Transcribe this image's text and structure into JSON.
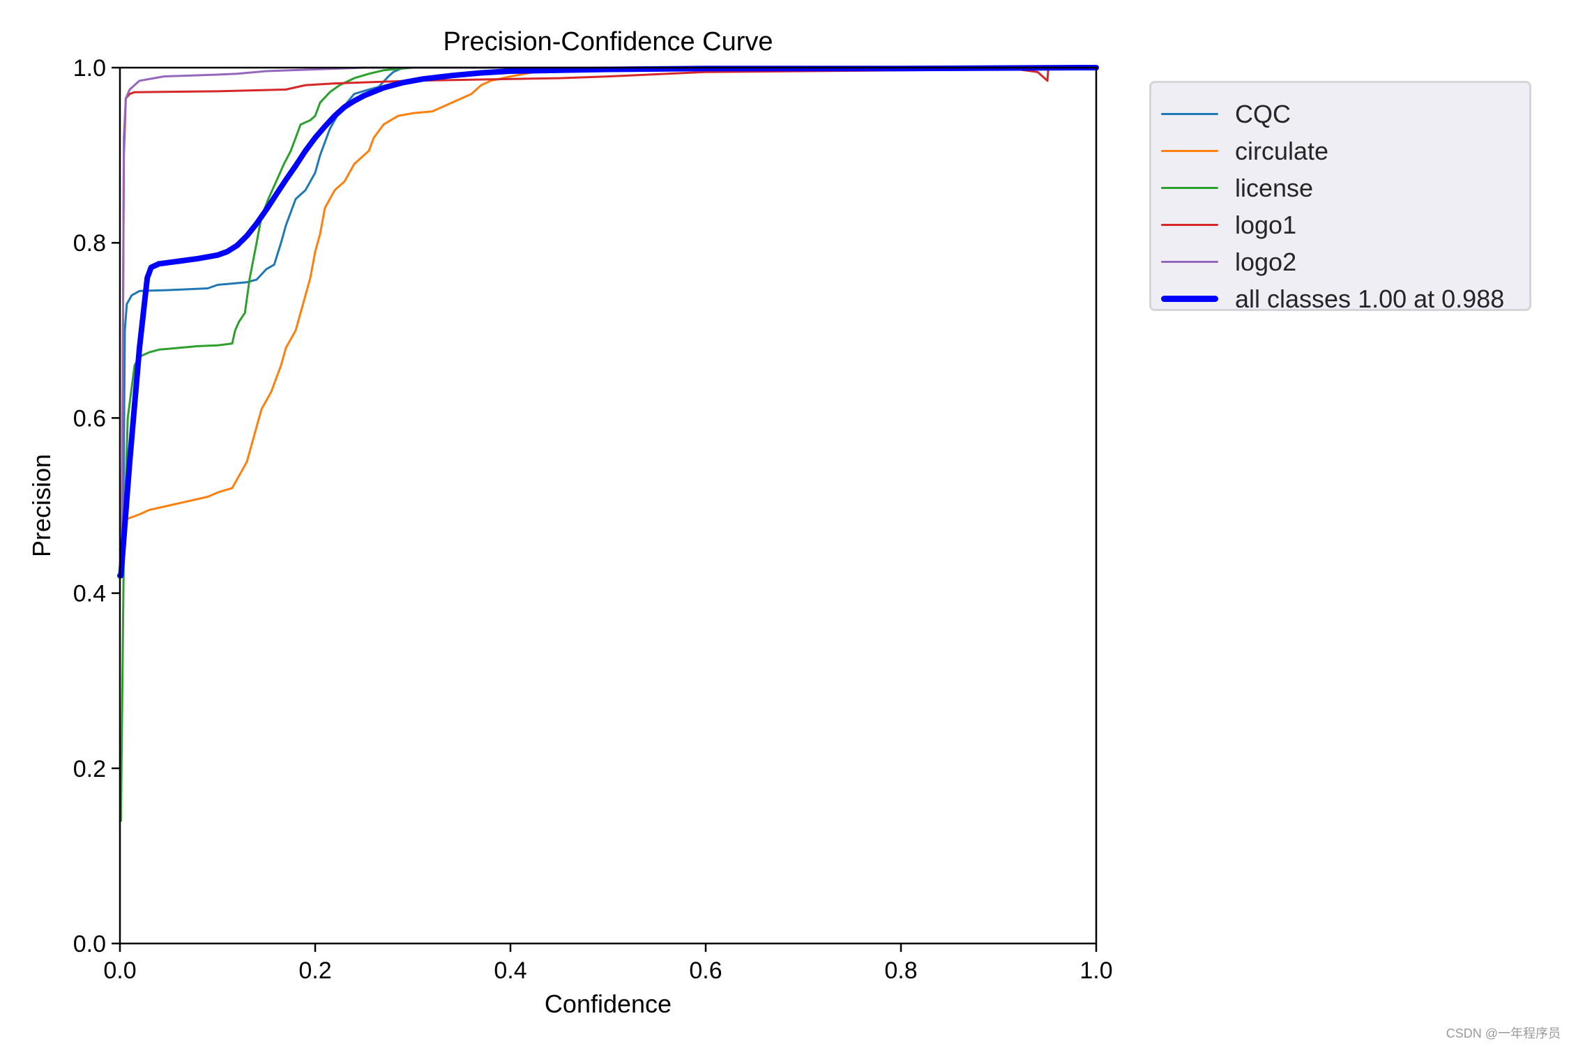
{
  "chart_data": {
    "type": "line",
    "title": "Precision-Confidence Curve",
    "xlabel": "Confidence",
    "ylabel": "Precision",
    "xlim": [
      0.0,
      1.0
    ],
    "ylim": [
      0.0,
      1.0
    ],
    "xticks": [
      "0.0",
      "0.2",
      "0.4",
      "0.6",
      "0.8",
      "1.0"
    ],
    "yticks": [
      "0.0",
      "0.2",
      "0.4",
      "0.6",
      "0.8",
      "1.0"
    ],
    "grid": false,
    "legend_position": "outside upper right",
    "series": [
      {
        "name": "CQC",
        "color": "#1f77b4",
        "width": 3,
        "x": [
          0.003,
          0.005,
          0.007,
          0.012,
          0.02,
          0.05,
          0.09,
          0.1,
          0.13,
          0.14,
          0.15,
          0.158,
          0.165,
          0.17,
          0.18,
          0.19,
          0.2,
          0.205,
          0.215,
          0.225,
          0.24,
          0.255,
          0.265,
          0.275,
          0.28,
          0.29,
          0.35,
          1.0
        ],
        "y": [
          0.42,
          0.7,
          0.73,
          0.74,
          0.745,
          0.746,
          0.748,
          0.752,
          0.755,
          0.758,
          0.77,
          0.775,
          0.8,
          0.82,
          0.85,
          0.86,
          0.88,
          0.9,
          0.93,
          0.95,
          0.97,
          0.975,
          0.978,
          0.99,
          0.995,
          1.0,
          1.0,
          1.0
        ]
      },
      {
        "name": "circulate",
        "color": "#ff7f0e",
        "width": 3,
        "x": [
          0.002,
          0.004,
          0.008,
          0.02,
          0.03,
          0.05,
          0.07,
          0.09,
          0.1,
          0.115,
          0.12,
          0.13,
          0.135,
          0.14,
          0.145,
          0.155,
          0.165,
          0.17,
          0.18,
          0.185,
          0.19,
          0.195,
          0.2,
          0.205,
          0.21,
          0.22,
          0.23,
          0.24,
          0.245,
          0.255,
          0.26,
          0.27,
          0.285,
          0.3,
          0.32,
          0.33,
          0.34,
          0.35,
          0.36,
          0.37,
          0.38,
          0.4,
          0.45,
          1.0
        ],
        "y": [
          0.42,
          0.48,
          0.485,
          0.49,
          0.495,
          0.5,
          0.505,
          0.51,
          0.515,
          0.52,
          0.53,
          0.55,
          0.57,
          0.59,
          0.61,
          0.63,
          0.66,
          0.68,
          0.7,
          0.72,
          0.74,
          0.76,
          0.79,
          0.81,
          0.84,
          0.86,
          0.87,
          0.89,
          0.895,
          0.905,
          0.92,
          0.935,
          0.945,
          0.948,
          0.95,
          0.955,
          0.96,
          0.965,
          0.97,
          0.98,
          0.985,
          0.99,
          1.0,
          1.0
        ]
      },
      {
        "name": "license",
        "color": "#2ca02c",
        "width": 3,
        "x": [
          0.001,
          0.004,
          0.008,
          0.015,
          0.02,
          0.03,
          0.04,
          0.06,
          0.08,
          0.1,
          0.115,
          0.118,
          0.122,
          0.128,
          0.133,
          0.14,
          0.145,
          0.152,
          0.16,
          0.168,
          0.175,
          0.18,
          0.185,
          0.195,
          0.2,
          0.205,
          0.215,
          0.225,
          0.24,
          0.255,
          0.27,
          0.3,
          1.0
        ],
        "y": [
          0.14,
          0.45,
          0.6,
          0.66,
          0.67,
          0.675,
          0.678,
          0.68,
          0.682,
          0.683,
          0.685,
          0.7,
          0.71,
          0.72,
          0.76,
          0.8,
          0.83,
          0.85,
          0.87,
          0.89,
          0.905,
          0.92,
          0.935,
          0.94,
          0.945,
          0.96,
          0.972,
          0.98,
          0.988,
          0.993,
          0.997,
          1.0,
          1.0
        ]
      },
      {
        "name": "logo1",
        "color": "#d62728",
        "width": 3,
        "x": [
          0.002,
          0.004,
          0.006,
          0.01,
          0.015,
          0.1,
          0.17,
          0.19,
          0.22,
          0.3,
          0.45,
          0.5,
          0.6,
          0.8,
          0.92,
          0.94,
          0.95,
          0.951,
          1.0
        ],
        "y": [
          0.45,
          0.9,
          0.965,
          0.97,
          0.972,
          0.973,
          0.975,
          0.98,
          0.982,
          0.985,
          0.988,
          0.99,
          0.995,
          0.997,
          0.998,
          0.995,
          0.985,
          1.0,
          1.0
        ]
      },
      {
        "name": "logo2",
        "color": "#9467bd",
        "width": 3,
        "x": [
          0.002,
          0.004,
          0.006,
          0.01,
          0.02,
          0.035,
          0.045,
          0.1,
          0.12,
          0.15,
          0.2,
          0.25,
          1.0
        ],
        "y": [
          0.43,
          0.92,
          0.965,
          0.975,
          0.985,
          0.988,
          0.99,
          0.992,
          0.993,
          0.996,
          0.998,
          1.0,
          1.0
        ]
      },
      {
        "name": "all classes 1.00 at 0.988",
        "color": "#0000ff",
        "width": 8,
        "x": [
          0.001,
          0.01,
          0.02,
          0.028,
          0.032,
          0.04,
          0.06,
          0.08,
          0.1,
          0.11,
          0.12,
          0.13,
          0.14,
          0.15,
          0.16,
          0.17,
          0.18,
          0.19,
          0.2,
          0.21,
          0.22,
          0.23,
          0.24,
          0.25,
          0.27,
          0.29,
          0.31,
          0.34,
          0.37,
          0.4,
          0.45,
          0.5,
          0.6,
          0.8,
          0.988,
          1.0
        ],
        "y": [
          0.42,
          0.55,
          0.68,
          0.76,
          0.772,
          0.776,
          0.779,
          0.782,
          0.786,
          0.79,
          0.797,
          0.808,
          0.822,
          0.838,
          0.855,
          0.872,
          0.888,
          0.905,
          0.92,
          0.933,
          0.945,
          0.955,
          0.962,
          0.968,
          0.977,
          0.983,
          0.987,
          0.991,
          0.994,
          0.996,
          0.997,
          0.998,
          0.999,
          0.999,
          1.0,
          1.0
        ]
      }
    ]
  },
  "legend": {
    "items": [
      {
        "label": "CQC",
        "color": "#1f77b4"
      },
      {
        "label": "circulate",
        "color": "#ff7f0e"
      },
      {
        "label": "license",
        "color": "#2ca02c"
      },
      {
        "label": "logo1",
        "color": "#d62728"
      },
      {
        "label": "logo2",
        "color": "#9467bd"
      },
      {
        "label": "all classes 1.00 at 0.988",
        "color": "#0000ff"
      }
    ]
  },
  "watermark": "CSDN @一年程序员"
}
